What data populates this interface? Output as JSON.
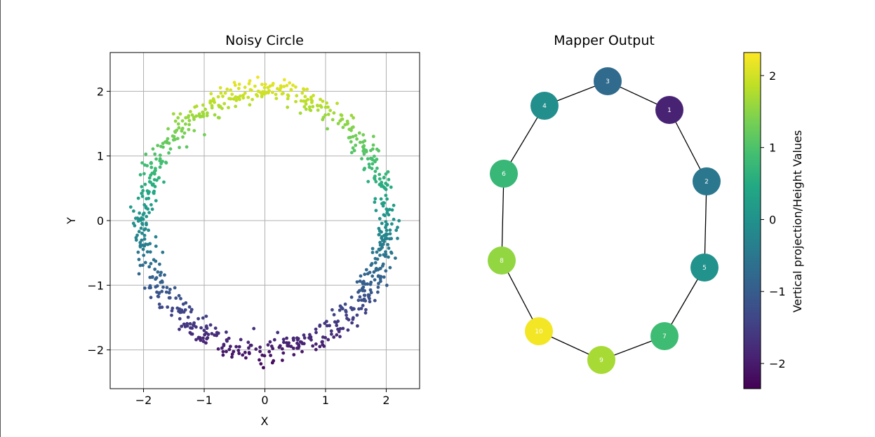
{
  "chart_data": [
    {
      "type": "scatter",
      "title": "Noisy Circle",
      "xlabel": "X",
      "ylabel": "Y",
      "xlim": [
        -2.55,
        2.55
      ],
      "ylim": [
        -2.6,
        2.6
      ],
      "xticks": [
        -2,
        -1,
        0,
        1,
        2
      ],
      "yticks": [
        -2,
        -1,
        0,
        1,
        2
      ],
      "xtick_labels": [
        "−2",
        "−1",
        "0",
        "1",
        "2"
      ],
      "ytick_labels": [
        "−2",
        "−1",
        "0",
        "1",
        "2"
      ],
      "grid": true,
      "circle_radius": 2.0,
      "noise_sd": 0.1,
      "point_count": 800,
      "color_by": "y"
    },
    {
      "type": "graph",
      "title": "Mapper Output",
      "nodes": [
        {
          "id": "1",
          "value": -1.9
        },
        {
          "id": "2",
          "value": -0.5
        },
        {
          "id": "3",
          "value": -0.75
        },
        {
          "id": "4",
          "value": -0.05
        },
        {
          "id": "5",
          "value": 0.0
        },
        {
          "id": "6",
          "value": 0.75
        },
        {
          "id": "7",
          "value": 0.85
        },
        {
          "id": "8",
          "value": 1.55
        },
        {
          "id": "9",
          "value": 1.7
        },
        {
          "id": "10",
          "value": 2.25
        }
      ],
      "edges": [
        [
          "3",
          "4"
        ],
        [
          "3",
          "1"
        ],
        [
          "4",
          "6"
        ],
        [
          "6",
          "8"
        ],
        [
          "8",
          "10"
        ],
        [
          "10",
          "9"
        ],
        [
          "9",
          "7"
        ],
        [
          "7",
          "5"
        ],
        [
          "5",
          "2"
        ],
        [
          "2",
          "1"
        ]
      ],
      "colorbar": {
        "label": "Vertical projection/Height Values",
        "min": -2.35,
        "max": 2.32,
        "ticks": [
          -2,
          -1,
          0,
          1,
          2
        ],
        "tick_labels": [
          "−2",
          "−1",
          "0",
          "1",
          "2"
        ],
        "colormap": "viridis"
      }
    }
  ]
}
